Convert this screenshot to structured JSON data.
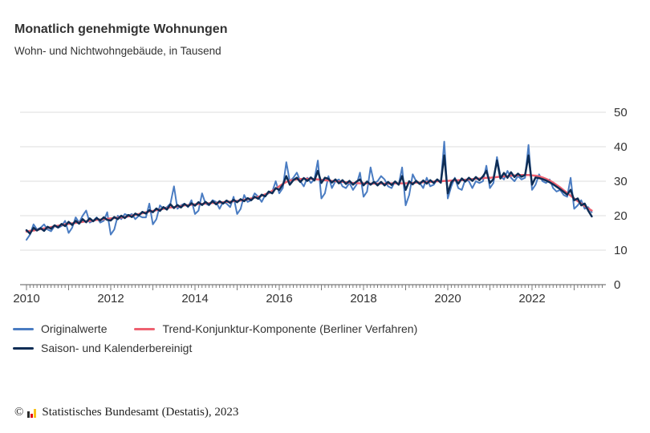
{
  "header": {
    "title": "Monatlich genehmigte Wohnungen",
    "subtitle": "Wohn- und Nichtwohngebäude, in Tausend"
  },
  "legend": [
    {
      "label": "Originalwerte",
      "color": "#4a7cc2"
    },
    {
      "label": "Trend-Konjunktur-Komponente (Berliner Verfahren)",
      "color": "#ee6170"
    },
    {
      "label": "Saison- und Kalenderbereinigt",
      "color": "#0e2d55"
    }
  ],
  "footer": {
    "copyright": "©",
    "source": "Statistisches Bundesamt (Destatis), 2023",
    "logo_colors": {
      "bar1": "#2b2b2b",
      "bar2": "#e30613",
      "bar3": "#f9c21a"
    }
  },
  "chart_data": {
    "type": "line",
    "title": "Monatlich genehmigte Wohnungen",
    "subtitle": "Wohn- und Nichtwohngebäude, in Tausend",
    "unit": "Tausend",
    "x_start": "2010-01",
    "x_end": "2023-06",
    "x_step": "month",
    "x_tick_labels": [
      "2010",
      "2012",
      "2014",
      "2016",
      "2018",
      "2020",
      "2022"
    ],
    "ylim": [
      0,
      50
    ],
    "yticks": [
      0,
      10,
      20,
      30,
      40,
      50
    ],
    "grid": true,
    "legend_position": "bottom",
    "series": [
      {
        "name": "Originalwerte",
        "color": "#4a7cc2",
        "width": 2,
        "values": [
          13.0,
          14.5,
          17.5,
          16.0,
          16.5,
          17.5,
          16.0,
          15.5,
          17.0,
          16.5,
          17.0,
          18.5,
          15.0,
          16.5,
          19.5,
          18.0,
          20.0,
          21.5,
          18.0,
          18.5,
          19.5,
          18.0,
          18.5,
          21.0,
          14.5,
          16.0,
          20.0,
          19.0,
          20.5,
          20.0,
          20.5,
          19.0,
          20.0,
          19.5,
          19.5,
          23.5,
          17.5,
          19.0,
          23.0,
          22.0,
          22.5,
          23.5,
          28.5,
          22.0,
          23.0,
          23.5,
          22.5,
          24.5,
          20.5,
          21.5,
          26.5,
          23.5,
          23.0,
          24.5,
          24.0,
          22.0,
          24.0,
          23.5,
          22.5,
          25.5,
          20.5,
          22.0,
          26.0,
          24.0,
          24.5,
          26.5,
          25.5,
          24.0,
          26.0,
          26.5,
          27.0,
          30.0,
          26.5,
          28.0,
          35.5,
          30.0,
          31.0,
          32.5,
          30.0,
          28.5,
          31.0,
          29.5,
          30.5,
          36.0,
          25.0,
          26.5,
          31.5,
          28.0,
          30.0,
          30.5,
          28.5,
          28.0,
          29.5,
          27.5,
          29.0,
          32.5,
          25.5,
          27.0,
          34.0,
          29.5,
          30.0,
          31.5,
          30.5,
          28.5,
          28.0,
          30.0,
          29.0,
          34.0,
          23.0,
          26.0,
          32.0,
          30.0,
          29.5,
          28.0,
          31.0,
          28.5,
          29.0,
          30.5,
          29.5,
          41.5,
          25.0,
          28.5,
          31.0,
          28.0,
          27.5,
          30.5,
          30.0,
          28.0,
          30.0,
          29.5,
          30.0,
          34.5,
          28.0,
          29.5,
          37.0,
          31.5,
          30.5,
          33.0,
          31.0,
          30.0,
          31.5,
          30.5,
          31.0,
          40.5,
          27.5,
          29.0,
          32.0,
          30.0,
          29.5,
          30.5,
          28.0,
          27.0,
          27.5,
          26.0,
          25.5,
          31.0,
          22.0,
          23.0,
          24.5,
          22.0,
          22.5,
          21.0
        ]
      },
      {
        "name": "Trend-Konjunktur-Komponente (Berliner Verfahren)",
        "color": "#ee6170",
        "width": 2.5,
        "values": [
          15.4,
          15.6,
          15.7,
          15.9,
          16.1,
          16.3,
          16.5,
          16.7,
          16.9,
          17.1,
          17.3,
          17.5,
          17.6,
          17.8,
          17.9,
          18.1,
          18.2,
          18.4,
          18.5,
          18.6,
          18.8,
          18.9,
          19.0,
          19.1,
          19.2,
          19.3,
          19.4,
          19.5,
          19.6,
          19.8,
          20.0,
          20.2,
          20.5,
          20.7,
          21.0,
          21.2,
          21.4,
          21.6,
          21.8,
          22.0,
          22.2,
          22.4,
          22.5,
          22.7,
          22.8,
          23.0,
          23.1,
          23.2,
          23.3,
          23.4,
          23.4,
          23.5,
          23.6,
          23.7,
          23.7,
          23.8,
          23.9,
          24.0,
          24.1,
          24.2,
          24.3,
          24.4,
          24.6,
          24.8,
          25.0,
          25.2,
          25.5,
          25.8,
          26.2,
          26.6,
          27.2,
          27.8,
          28.5,
          29.2,
          29.8,
          30.2,
          30.4,
          30.5,
          30.6,
          30.7,
          30.7,
          30.7,
          30.6,
          30.5,
          30.4,
          30.3,
          30.2,
          30.1,
          30.0,
          29.9,
          29.8,
          29.7,
          29.6,
          29.5,
          29.5,
          29.4,
          29.4,
          29.4,
          29.3,
          29.3,
          29.3,
          29.3,
          29.3,
          29.3,
          29.4,
          29.4,
          29.4,
          29.4,
          29.4,
          29.5,
          29.5,
          29.6,
          29.6,
          29.7,
          29.8,
          29.8,
          29.9,
          30.0,
          30.0,
          30.1,
          30.1,
          30.2,
          30.2,
          30.3,
          30.3,
          30.4,
          30.5,
          30.6,
          30.7,
          30.8,
          30.9,
          31.0,
          31.0,
          31.1,
          31.2,
          31.3,
          31.4,
          31.5,
          31.6,
          31.7,
          31.7,
          31.8,
          31.8,
          31.8,
          31.7,
          31.6,
          31.4,
          31.1,
          30.7,
          30.2,
          29.6,
          28.9,
          28.2,
          27.4,
          26.6,
          25.8,
          25.0,
          24.2,
          23.5,
          22.8,
          22.1,
          21.5
        ]
      },
      {
        "name": "Saison- und Kalenderbereinigt",
        "color": "#0e2d55",
        "width": 2.5,
        "values": [
          15.8,
          14.8,
          16.5,
          15.7,
          16.4,
          15.6,
          16.8,
          16.2,
          17.2,
          16.6,
          17.6,
          17.0,
          18.2,
          17.3,
          18.5,
          17.7,
          19.0,
          18.1,
          19.2,
          18.4,
          19.3,
          18.6,
          19.5,
          18.8,
          18.6,
          19.6,
          19.0,
          20.0,
          19.3,
          20.2,
          19.6,
          20.6,
          20.1,
          21.1,
          20.6,
          21.6,
          21.0,
          22.1,
          21.4,
          22.5,
          21.8,
          23.3,
          22.2,
          23.1,
          22.4,
          23.4,
          22.7,
          23.6,
          22.9,
          23.9,
          23.1,
          24.0,
          23.2,
          24.2,
          23.3,
          24.2,
          23.5,
          24.4,
          23.7,
          24.6,
          23.9,
          24.8,
          24.2,
          25.1,
          24.5,
          25.5,
          24.9,
          26.1,
          25.6,
          27.0,
          26.5,
          28.0,
          27.5,
          29.0,
          31.5,
          29.0,
          30.3,
          31.0,
          29.8,
          30.9,
          30.1,
          31.1,
          30.2,
          33.0,
          29.5,
          31.0,
          30.7,
          29.6,
          30.5,
          29.4,
          30.3,
          29.2,
          30.1,
          29.0,
          29.9,
          30.5,
          28.8,
          29.9,
          29.0,
          29.8,
          28.8,
          29.8,
          28.8,
          29.8,
          28.9,
          29.9,
          29.0,
          31.5,
          27.5,
          30.0,
          29.1,
          30.1,
          29.2,
          30.2,
          29.3,
          30.3,
          29.5,
          30.5,
          29.6,
          37.5,
          26.5,
          29.7,
          30.7,
          29.3,
          30.8,
          29.9,
          31.0,
          30.1,
          31.2,
          30.3,
          31.4,
          33.0,
          29.5,
          30.6,
          36.0,
          30.8,
          32.4,
          31.0,
          32.6,
          31.2,
          32.2,
          31.3,
          31.8,
          37.5,
          29.0,
          31.1,
          30.9,
          30.6,
          30.2,
          29.7,
          29.1,
          28.4,
          27.7,
          26.9,
          26.1,
          27.5,
          24.5,
          25.0,
          23.0,
          23.5,
          21.5,
          19.8
        ]
      }
    ],
    "style": {
      "grid_color": "#dcdcdc",
      "axis_color": "#7a7a7a",
      "label_color": "#333333"
    }
  }
}
